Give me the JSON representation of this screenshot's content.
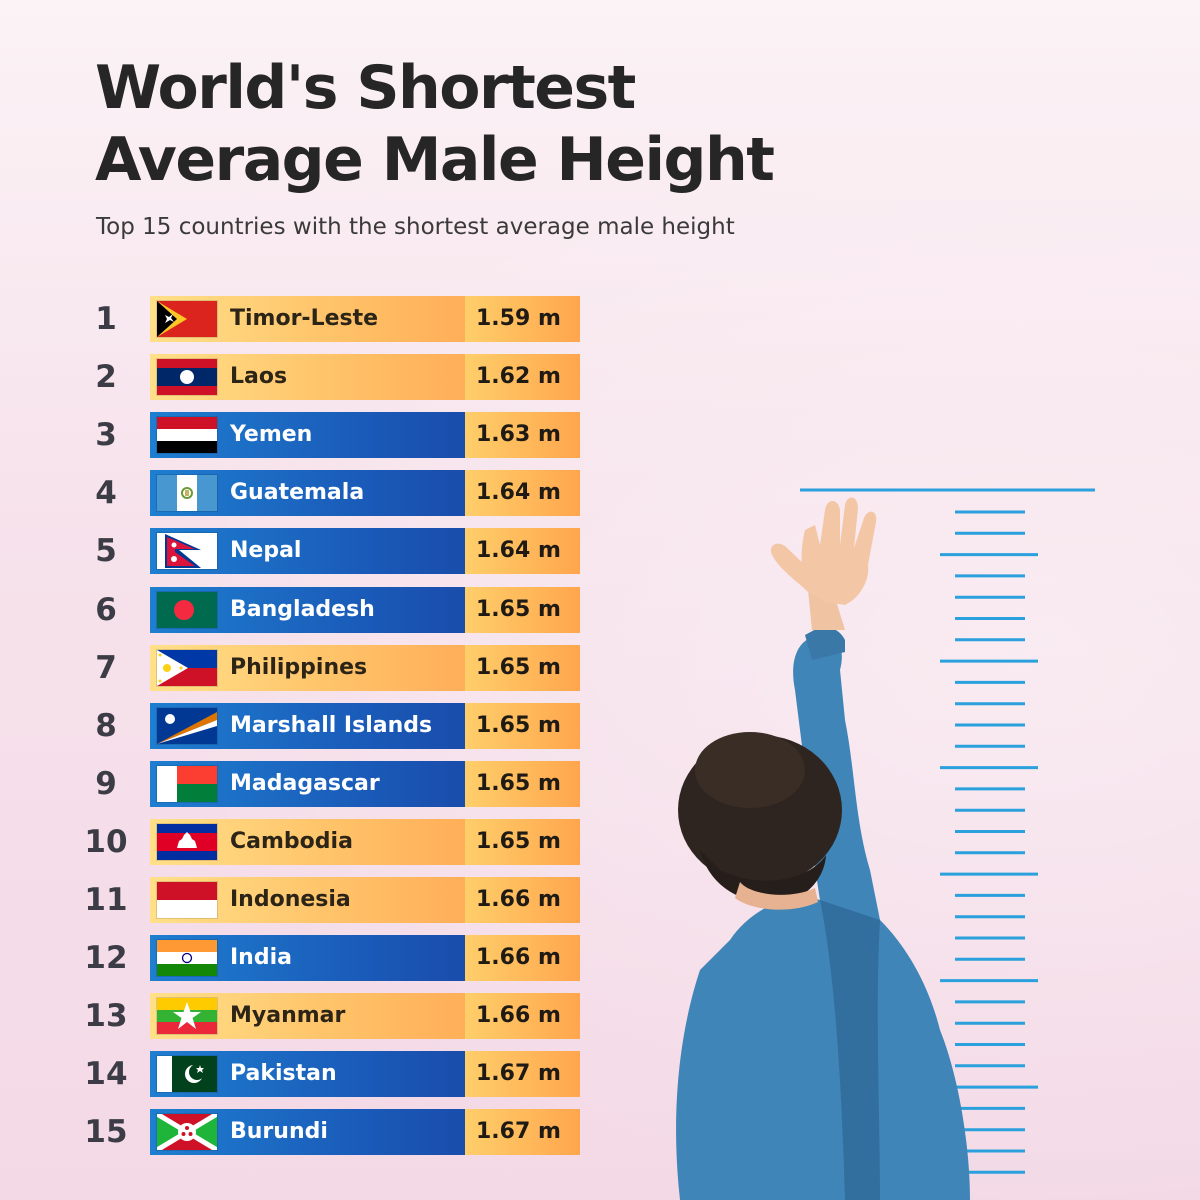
{
  "title_line1": "World's Shortest",
  "title_line2": "Average Male Height",
  "subtitle": "Top 15 countries with the shortest average male height",
  "colors": {
    "orange_bar": "#ffc167",
    "blue_bar": "#1a5ab8",
    "value_box": "#ffa64d",
    "ruler": "#2aa0dc",
    "shirt": "#3f85b8"
  },
  "chart_data": {
    "type": "table",
    "title": "World's Shortest Average Male Height",
    "subtitle": "Top 15 countries with the shortest average male height",
    "unit": "m",
    "rows": [
      {
        "rank": "1",
        "country": "Timor-Leste",
        "height": 1.59,
        "label": "1.59 m",
        "style": "orange",
        "flag": "timor-leste-flag"
      },
      {
        "rank": "2",
        "country": "Laos",
        "height": 1.62,
        "label": "1.62 m",
        "style": "orange",
        "flag": "laos-flag"
      },
      {
        "rank": "3",
        "country": "Yemen",
        "height": 1.63,
        "label": "1.63 m",
        "style": "blue",
        "flag": "yemen-flag"
      },
      {
        "rank": "4",
        "country": "Guatemala",
        "height": 1.64,
        "label": "1.64 m",
        "style": "blue",
        "flag": "guatemala-flag"
      },
      {
        "rank": "5",
        "country": "Nepal",
        "height": 1.64,
        "label": "1.64 m",
        "style": "blue",
        "flag": "nepal-flag"
      },
      {
        "rank": "6",
        "country": "Bangladesh",
        "height": 1.65,
        "label": "1.65 m",
        "style": "blue",
        "flag": "bangladesh-flag"
      },
      {
        "rank": "7",
        "country": "Philippines",
        "height": 1.65,
        "label": "1.65 m",
        "style": "orange",
        "flag": "philippines-flag"
      },
      {
        "rank": "8",
        "country": "Marshall Islands",
        "height": 1.65,
        "label": "1.65 m",
        "style": "blue",
        "flag": "marshall-islands-flag"
      },
      {
        "rank": "9",
        "country": "Madagascar",
        "height": 1.65,
        "label": "1.65 m",
        "style": "blue",
        "flag": "madagascar-flag"
      },
      {
        "rank": "10",
        "country": "Cambodia",
        "height": 1.65,
        "label": "1.65 m",
        "style": "orange",
        "flag": "cambodia-flag"
      },
      {
        "rank": "11",
        "country": "Indonesia",
        "height": 1.66,
        "label": "1.66 m",
        "style": "orange",
        "flag": "indonesia-flag"
      },
      {
        "rank": "12",
        "country": "India",
        "height": 1.66,
        "label": "1.66 m",
        "style": "blue",
        "flag": "india-flag"
      },
      {
        "rank": "13",
        "country": "Myanmar",
        "height": 1.66,
        "label": "1.66 m",
        "style": "orange",
        "flag": "myanmar-flag"
      },
      {
        "rank": "14",
        "country": "Pakistan",
        "height": 1.67,
        "label": "1.67 m",
        "style": "blue",
        "flag": "pakistan-flag"
      },
      {
        "rank": "15",
        "country": "Burundi",
        "height": 1.67,
        "label": "1.67 m",
        "style": "blue",
        "flag": "burundi-flag"
      }
    ]
  }
}
